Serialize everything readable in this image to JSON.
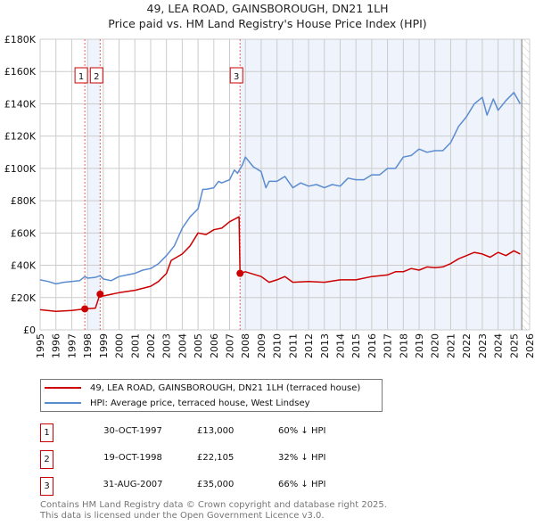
{
  "title": "49, LEA ROAD, GAINSBOROUGH, DN21 1LH",
  "subtitle": "Price paid vs. HM Land Registry's House Price Index (HPI)",
  "colors": {
    "property": "#cc0000",
    "hpi": "#5b8ccf",
    "shade": "#eef3fc",
    "grid": "#cccccc"
  },
  "chart_data": {
    "type": "line",
    "title": "49, LEA ROAD, GAINSBOROUGH, DN21 1LH — Price paid vs. HM Land Registry's House Price Index (HPI)",
    "xlim": [
      1995,
      2026
    ],
    "ylim": [
      0,
      180000
    ],
    "x_ticks": [
      "1995",
      "1996",
      "1997",
      "1998",
      "1999",
      "2000",
      "2001",
      "2002",
      "2003",
      "2004",
      "2005",
      "2006",
      "2007",
      "2008",
      "2009",
      "2010",
      "2011",
      "2012",
      "2013",
      "2014",
      "2015",
      "2016",
      "2017",
      "2018",
      "2019",
      "2020",
      "2021",
      "2022",
      "2023",
      "2024",
      "2025",
      "2026"
    ],
    "y_ticks": [
      {
        "v": 0,
        "label": "£0"
      },
      {
        "v": 20000,
        "label": "£20K"
      },
      {
        "v": 40000,
        "label": "£40K"
      },
      {
        "v": 60000,
        "label": "£60K"
      },
      {
        "v": 80000,
        "label": "£80K"
      },
      {
        "v": 100000,
        "label": "£100K"
      },
      {
        "v": 120000,
        "label": "£120K"
      },
      {
        "v": 140000,
        "label": "£140K"
      },
      {
        "v": 160000,
        "label": "£160K"
      },
      {
        "v": 180000,
        "label": "£180K"
      }
    ],
    "grid": true,
    "legend_position": "below",
    "series": [
      {
        "name": "49, LEA ROAD, GAINSBOROUGH, DN21 1LH (terraced house)",
        "color": "#cc0000",
        "x": [
          1995,
          1996,
          1997,
          1997.83,
          1998.5,
          1998.79,
          1999,
          2000,
          2001,
          2002,
          2002.5,
          2003,
          2003.3,
          2004,
          2004.5,
          2005,
          2005.5,
          2006,
          2006.5,
          2007,
          2007.6,
          2007.66,
          2008,
          2009,
          2009.5,
          2010,
          2010.5,
          2011,
          2012,
          2013,
          2014,
          2015,
          2016,
          2017,
          2017.5,
          2018,
          2018.5,
          2019,
          2019.5,
          2020,
          2020.5,
          2021,
          2021.5,
          2022,
          2022.5,
          2023,
          2023.5,
          2024,
          2024.5,
          2025,
          2025.4
        ],
        "y": [
          12500,
          11500,
          12000,
          13000,
          13500,
          22105,
          21000,
          23000,
          24500,
          27000,
          30000,
          35000,
          43000,
          47000,
          52000,
          60000,
          59000,
          62000,
          63000,
          67000,
          70000,
          35000,
          36000,
          33000,
          29500,
          31000,
          33000,
          29500,
          30000,
          29500,
          31000,
          31000,
          33000,
          34000,
          36000,
          36000,
          38000,
          37000,
          39000,
          38500,
          39000,
          41000,
          44000,
          46000,
          48000,
          47000,
          45000,
          48000,
          46000,
          49000,
          47000
        ]
      },
      {
        "name": "HPI: Average price, terraced house, West Lindsey",
        "color": "#5b8ccf",
        "x": [
          1995,
          1995.5,
          1996,
          1996.5,
          1997,
          1997.5,
          1997.83,
          1998,
          1998.5,
          1998.8,
          1999,
          1999.5,
          2000,
          2000.5,
          2001,
          2001.5,
          2002,
          2002.5,
          2003,
          2003.5,
          2004,
          2004.5,
          2005,
          2005.3,
          2005.5,
          2006,
          2006.3,
          2006.5,
          2007,
          2007.3,
          2007.5,
          2007.8,
          2008,
          2008.5,
          2009,
          2009.3,
          2009.5,
          2010,
          2010.5,
          2011,
          2011.5,
          2012,
          2012.5,
          2013,
          2013.5,
          2014,
          2014.5,
          2015,
          2015.5,
          2016,
          2016.5,
          2017,
          2017.5,
          2018,
          2018.5,
          2019,
          2019.5,
          2020,
          2020.5,
          2021,
          2021.5,
          2022,
          2022.5,
          2023,
          2023.3,
          2023.7,
          2024,
          2024.5,
          2025,
          2025.4
        ],
        "y": [
          31000,
          30000,
          28500,
          29500,
          30000,
          30500,
          33000,
          32000,
          32500,
          33500,
          31500,
          30500,
          33000,
          34000,
          35000,
          37000,
          38000,
          41000,
          46000,
          52000,
          63000,
          70000,
          75000,
          87000,
          87000,
          88000,
          92000,
          91000,
          93000,
          99000,
          97000,
          102000,
          107000,
          101000,
          98000,
          88000,
          92000,
          92000,
          95000,
          88000,
          91000,
          89000,
          90000,
          88000,
          90000,
          89000,
          94000,
          93000,
          93000,
          96000,
          96000,
          100000,
          100000,
          107000,
          108000,
          112000,
          110000,
          111000,
          111000,
          116000,
          126000,
          132000,
          140000,
          144000,
          133000,
          143000,
          136000,
          142000,
          147000,
          140000
        ]
      }
    ],
    "sales": [
      {
        "id": "1",
        "x": 1997.83,
        "y": 13000
      },
      {
        "id": "2",
        "x": 1998.8,
        "y": 22105
      },
      {
        "id": "3",
        "x": 2007.66,
        "y": 35000
      }
    ],
    "shaded_ranges": [
      [
        1998.0,
        1998.8
      ],
      [
        2007.66,
        2025.5
      ]
    ],
    "forecast_hatch_from": 2025.5
  },
  "legend": {
    "property_label": "49, LEA ROAD, GAINSBOROUGH, DN21 1LH (terraced house)",
    "hpi_label": "HPI: Average price, terraced house, West Lindsey"
  },
  "transactions": [
    {
      "num": "1",
      "date": "30-OCT-1997",
      "price": "£13,000",
      "hpi": "60% ↓ HPI"
    },
    {
      "num": "2",
      "date": "19-OCT-1998",
      "price": "£22,105",
      "hpi": "32% ↓ HPI"
    },
    {
      "num": "3",
      "date": "31-AUG-2007",
      "price": "£35,000",
      "hpi": "66% ↓ HPI"
    }
  ],
  "footer": {
    "line1": "Contains HM Land Registry data © Crown copyright and database right 2025.",
    "line2": "This data is licensed under the Open Government Licence v3.0."
  }
}
